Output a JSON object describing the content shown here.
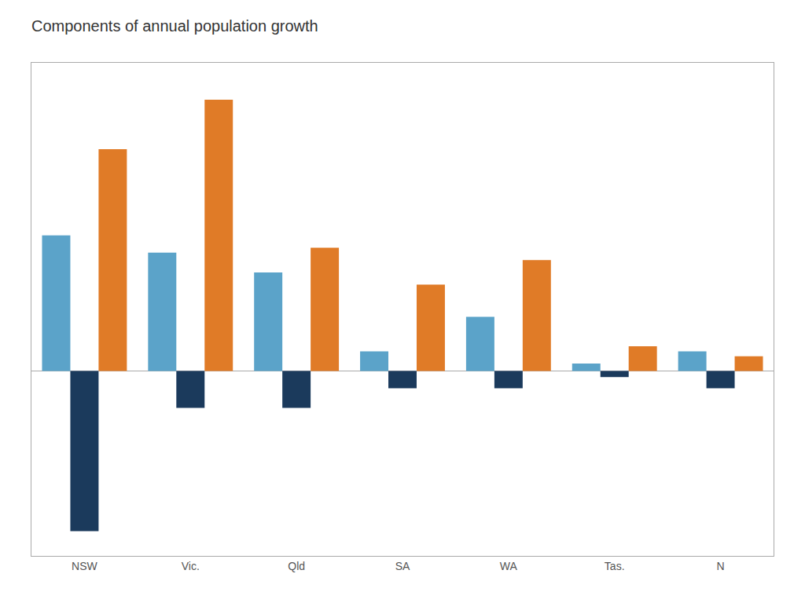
{
  "chart_data": {
    "type": "bar",
    "title": "Components of annual population growth",
    "categories": [
      "NSW",
      "Vic.",
      "Qld",
      "SA",
      "WA",
      "Tas.",
      "N"
    ],
    "series": [
      {
        "color": "#5BA3C9",
        "values": [
          55000,
          48000,
          40000,
          8000,
          22000,
          3000,
          8000
        ]
      },
      {
        "color": "#1B3A5C",
        "values": [
          -65000,
          -15000,
          -15000,
          -7000,
          -7000,
          -2500,
          -7000
        ]
      },
      {
        "color": "#E07B27",
        "values": [
          90000,
          110000,
          50000,
          35000,
          45000,
          10000,
          6000
        ]
      }
    ],
    "ylim": [
      -75000,
      125000
    ],
    "yticks": [],
    "grid": false,
    "tick_labels": "x"
  }
}
